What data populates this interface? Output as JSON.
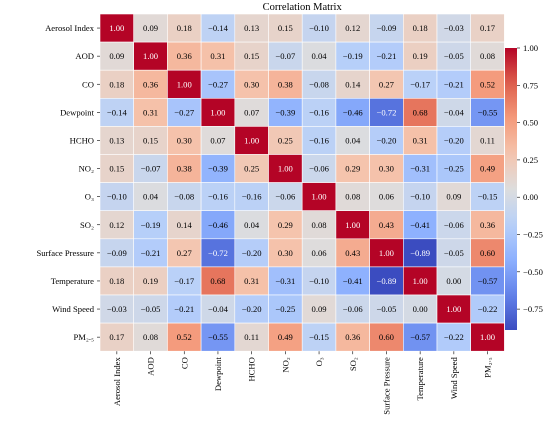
{
  "chart_data": {
    "type": "heatmap",
    "title": "Correlation Matrix",
    "row_labels": [
      "Aerosol Index",
      "AOD",
      "CO",
      "Dewpoint",
      "HCHO",
      "NO₂",
      "O₃",
      "SO₂",
      "Surface Pressure",
      "Temperature",
      "Wind Speed",
      "PM₂.₅"
    ],
    "col_labels": [
      "Aerosol Index",
      "AOD",
      "CO",
      "Dewpoint",
      "HCHO",
      "NO₂",
      "O₃",
      "SO₂",
      "Surface Pressure",
      "Temperature",
      "Wind Speed",
      "PM₂.₅"
    ],
    "values": [
      [
        1.0,
        0.09,
        0.18,
        -0.14,
        0.13,
        0.15,
        -0.1,
        0.12,
        -0.09,
        0.18,
        -0.03,
        0.17
      ],
      [
        0.09,
        1.0,
        0.36,
        0.31,
        0.15,
        -0.07,
        0.04,
        -0.19,
        -0.21,
        0.19,
        -0.05,
        0.08
      ],
      [
        0.18,
        0.36,
        1.0,
        -0.27,
        0.3,
        0.38,
        -0.08,
        0.14,
        0.27,
        -0.17,
        -0.21,
        0.52
      ],
      [
        -0.14,
        0.31,
        -0.27,
        1.0,
        0.07,
        -0.39,
        -0.16,
        -0.46,
        -0.72,
        0.68,
        -0.04,
        -0.55
      ],
      [
        0.13,
        0.15,
        0.3,
        0.07,
        1.0,
        0.25,
        -0.16,
        0.04,
        -0.2,
        0.31,
        -0.2,
        0.11
      ],
      [
        0.15,
        -0.07,
        0.38,
        -0.39,
        0.25,
        1.0,
        -0.06,
        0.29,
        0.3,
        -0.31,
        -0.25,
        0.49
      ],
      [
        -0.1,
        0.04,
        -0.08,
        -0.16,
        -0.16,
        -0.06,
        1.0,
        0.08,
        0.06,
        -0.1,
        0.09,
        -0.15
      ],
      [
        0.12,
        -0.19,
        0.14,
        -0.46,
        0.04,
        0.29,
        0.08,
        1.0,
        0.43,
        -0.41,
        -0.06,
        0.36
      ],
      [
        -0.09,
        -0.21,
        0.27,
        -0.72,
        -0.2,
        0.3,
        0.06,
        0.43,
        1.0,
        -0.89,
        -0.05,
        0.6
      ],
      [
        0.18,
        0.19,
        -0.17,
        0.68,
        0.31,
        -0.31,
        -0.1,
        -0.41,
        -0.89,
        1.0,
        0.0,
        -0.57
      ],
      [
        -0.03,
        -0.05,
        -0.21,
        -0.04,
        -0.2,
        -0.25,
        0.09,
        -0.06,
        -0.05,
        0.0,
        1.0,
        -0.22
      ],
      [
        0.17,
        0.08,
        0.52,
        -0.55,
        0.11,
        0.49,
        -0.15,
        0.36,
        0.6,
        -0.57,
        -0.22,
        1.0
      ]
    ],
    "colorbar": {
      "colormap": "coolwarm",
      "vmin": -0.89,
      "vmax": 1.0,
      "ticks": [
        1.0,
        0.75,
        0.5,
        0.25,
        0.0,
        -0.25,
        -0.5,
        -0.75
      ],
      "tick_labels": [
        "1.00",
        "0.75",
        "0.50",
        "0.25",
        "0.00",
        "−0.25",
        "−0.50",
        "−0.75"
      ]
    },
    "cell_text_precision": 2,
    "grid": true
  }
}
